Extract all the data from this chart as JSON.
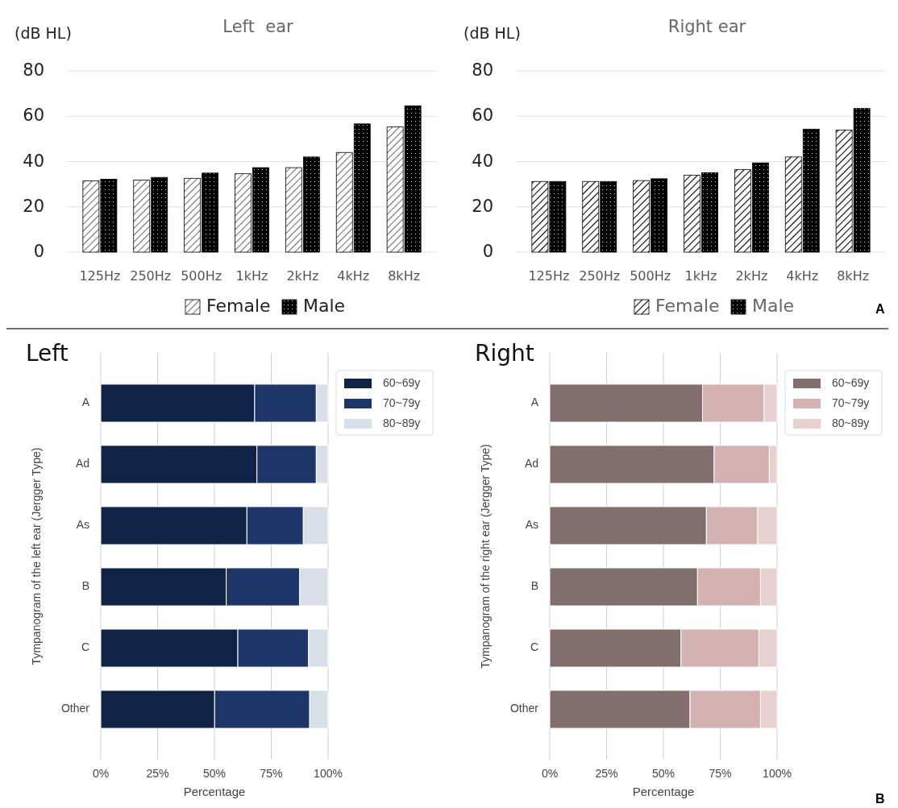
{
  "chart_data": [
    {
      "type": "bar",
      "title": "Left  ear",
      "ylabel": "(dB HL)",
      "categories": [
        "125Hz",
        "250Hz",
        "500Hz",
        "1kHz",
        "2kHz",
        "4kHz",
        "8kHz"
      ],
      "series": [
        {
          "name": "Female",
          "color": "#000000",
          "values": [
            31.5,
            31.8,
            32.6,
            34.6,
            37.3,
            44,
            55.3
          ]
        },
        {
          "name": "Male",
          "color": "#000000",
          "values": [
            32.2,
            33,
            34.9,
            37.3,
            42,
            56.6,
            64.6
          ]
        }
      ],
      "ylim": [
        0,
        80
      ],
      "yticks": [
        0,
        20,
        40,
        60,
        80
      ],
      "grid": "y",
      "legend": "bottom"
    },
    {
      "type": "bar",
      "title": "Right ear",
      "ylabel": "(dB HL)",
      "categories": [
        "125Hz",
        "250Hz",
        "500Hz",
        "1kHz",
        "2kHz",
        "4kHz",
        "8kHz"
      ],
      "series": [
        {
          "name": "Female",
          "color": "#000000",
          "values": [
            31.2,
            31.2,
            31.6,
            34,
            36.4,
            42,
            53.9
          ]
        },
        {
          "name": "Male",
          "color": "#000000",
          "values": [
            31.2,
            31.2,
            32.4,
            35.1,
            39.4,
            54.3,
            63.4
          ]
        }
      ],
      "ylim": [
        0,
        80
      ],
      "yticks": [
        0,
        20,
        40,
        60,
        80
      ],
      "grid": "y",
      "legend": "bottom",
      "annotations": [
        "A"
      ]
    },
    {
      "type": "bar",
      "orientation": "horizontal",
      "stacked": true,
      "title": "Left",
      "xlabel": "Percentage",
      "ylabel": "Tympanogram of the left ear (Jergger Type)",
      "categories": [
        "A",
        "Ad",
        "As",
        "B",
        "C",
        "Other"
      ],
      "series": [
        {
          "name": "60~69y",
          "color": "#0f2347",
          "values": [
            67.7,
            68.7,
            64.3,
            55.2,
            60.3,
            50.1
          ]
        },
        {
          "name": "70~79y",
          "color": "#1d3568",
          "values": [
            27.1,
            26.1,
            24.8,
            32.3,
            31.1,
            41.8
          ]
        },
        {
          "name": "80~89y",
          "color": "#d9dee8",
          "values": [
            5.2,
            5.2,
            10.9,
            12.5,
            8.6,
            8.1
          ]
        }
      ],
      "xlim": [
        0,
        100
      ],
      "xticks": [
        {
          "value": 0,
          "label": "0%"
        },
        {
          "value": 25,
          "label": "25%"
        },
        {
          "value": 50,
          "label": "50%"
        },
        {
          "value": 75,
          "label": "75%"
        },
        {
          "value": 100,
          "label": "100%"
        }
      ],
      "grid": "x",
      "legend": "top right"
    },
    {
      "type": "bar",
      "orientation": "horizontal",
      "stacked": true,
      "title": "Right",
      "xlabel": "Percentage",
      "ylabel": "Tympanogram of the right ear (Jergger Type)",
      "categories": [
        "A",
        "Ad",
        "As",
        "B",
        "C",
        "Other"
      ],
      "series": [
        {
          "name": "60~69y",
          "color": "#826e6e",
          "values": [
            67.2,
            72.3,
            68.9,
            65,
            57.7,
            61.7
          ]
        },
        {
          "name": "70~79y",
          "color": "#d4b2b2",
          "values": [
            27.1,
            24.3,
            22.6,
            27.7,
            34.3,
            31
          ]
        },
        {
          "name": "80~89y",
          "color": "#e6d0d0",
          "values": [
            5.7,
            3.4,
            8.5,
            7.3,
            8,
            7.3
          ]
        }
      ],
      "xlim": [
        0,
        100
      ],
      "xticks": [
        {
          "value": 0,
          "label": "0%"
        },
        {
          "value": 25,
          "label": "25%"
        },
        {
          "value": 50,
          "label": "50%"
        },
        {
          "value": 75,
          "label": "75%"
        },
        {
          "value": 100,
          "label": "100%"
        }
      ],
      "grid": "x",
      "legend": "top right",
      "annotations": [
        "B"
      ]
    }
  ]
}
